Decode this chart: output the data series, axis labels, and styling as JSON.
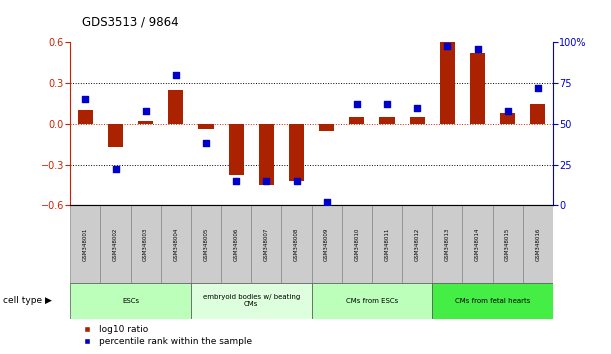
{
  "title": "GDS3513 / 9864",
  "samples": [
    "GSM348001",
    "GSM348002",
    "GSM348003",
    "GSM348004",
    "GSM348005",
    "GSM348006",
    "GSM348007",
    "GSM348008",
    "GSM348009",
    "GSM348010",
    "GSM348011",
    "GSM348012",
    "GSM348013",
    "GSM348014",
    "GSM348015",
    "GSM348016"
  ],
  "log10_ratio": [
    0.1,
    -0.17,
    0.02,
    0.25,
    -0.04,
    -0.38,
    -0.45,
    -0.42,
    -0.05,
    0.05,
    0.05,
    0.05,
    0.6,
    0.52,
    0.08,
    0.15
  ],
  "percentile_rank": [
    65,
    22,
    58,
    80,
    38,
    15,
    15,
    15,
    2,
    62,
    62,
    60,
    98,
    96,
    58,
    72
  ],
  "cell_type_groups": [
    {
      "label": "ESCs",
      "start": 0,
      "end": 3,
      "color": "#bbffbb"
    },
    {
      "label": "embryoid bodies w/ beating\nCMs",
      "start": 4,
      "end": 7,
      "color": "#ddffdd"
    },
    {
      "label": "CMs from ESCs",
      "start": 8,
      "end": 11,
      "color": "#bbffbb"
    },
    {
      "label": "CMs from fetal hearts",
      "start": 12,
      "end": 15,
      "color": "#44ee44"
    }
  ],
  "bar_color": "#aa2200",
  "dot_color": "#0000cc",
  "left_axis_color": "#cc2200",
  "right_axis_color": "#0000cc",
  "ylim": [
    -0.6,
    0.6
  ],
  "y2lim": [
    0,
    100
  ],
  "yticks": [
    -0.6,
    -0.3,
    0.0,
    0.3,
    0.6
  ],
  "y2ticks": [
    0,
    25,
    50,
    75,
    100
  ],
  "hline_dotted": [
    0.3,
    -0.3
  ],
  "hline_zero_color": "#cc2200",
  "legend_red_label": "log10 ratio",
  "legend_blue_label": "percentile rank within the sample",
  "cell_type_label": "cell type",
  "sample_box_color": "#cccccc",
  "sample_box_edge": "#888888",
  "group_box_edge": "#555555"
}
